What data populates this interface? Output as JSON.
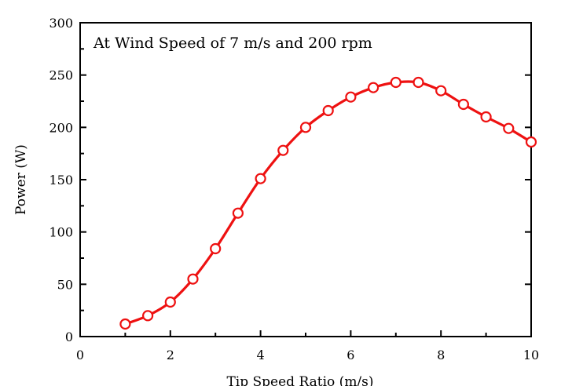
{
  "chart_data": {
    "type": "line",
    "annotation": "At Wind Speed of 7 m/s and 200 rpm",
    "xlabel": "Tip Speed Ratio (m/s)",
    "ylabel": "Power (W)",
    "xlim": [
      0,
      10
    ],
    "ylim": [
      0,
      300
    ],
    "xticks": [
      0,
      2,
      4,
      6,
      8,
      10
    ],
    "yticks": [
      0,
      50,
      100,
      150,
      200,
      250,
      300
    ],
    "grid": false,
    "series": [
      {
        "color": "#ee1111",
        "marker": "open-circle",
        "x": [
          1,
          1.5,
          2,
          2.5,
          3,
          3.5,
          4,
          4.5,
          5,
          5.5,
          6,
          6.5,
          7,
          7.5,
          8,
          8.5,
          9,
          9.5,
          10
        ],
        "y": [
          12,
          20,
          33,
          55,
          84,
          118,
          151,
          178,
          200,
          216,
          229,
          238,
          243,
          243,
          235,
          222,
          210,
          199,
          186
        ]
      }
    ]
  }
}
